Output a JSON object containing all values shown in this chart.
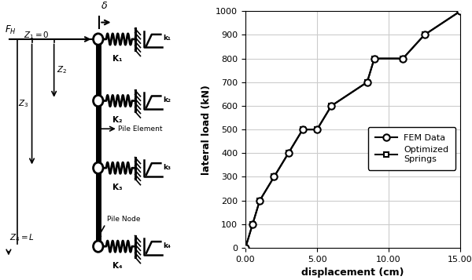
{
  "fig_width": 6.0,
  "fig_height": 3.57,
  "dpi": 100,
  "bg_color": "#ffffff",
  "graph": {
    "fem_x": [
      0,
      0.5,
      1.0,
      2.0,
      3.0,
      4.0,
      5.0,
      6.0,
      8.5,
      9.0,
      11.0,
      12.5,
      15.0
    ],
    "fem_y": [
      0,
      100,
      200,
      300,
      400,
      500,
      500,
      600,
      700,
      800,
      800,
      900,
      1000
    ],
    "opt_x": [
      0,
      0.5,
      1.0,
      2.0,
      3.0,
      4.0,
      5.0,
      6.0,
      8.5,
      9.0,
      11.0,
      12.5,
      15.0
    ],
    "opt_y": [
      0,
      100,
      200,
      300,
      400,
      500,
      500,
      600,
      700,
      800,
      800,
      900,
      1000
    ],
    "xlabel": "displacement (cm)",
    "ylabel": "lateral load (kN)",
    "xlim": [
      0,
      15
    ],
    "ylim": [
      0,
      1000
    ],
    "xticks": [
      0.0,
      5.0,
      10.0,
      15.0
    ],
    "yticks": [
      0,
      100,
      200,
      300,
      400,
      500,
      600,
      700,
      800,
      900,
      1000
    ],
    "legend_fem": "FEM Data",
    "legend_opt": "Optimized\nSprings",
    "grid_color": "#cccccc",
    "line_color": "#000000",
    "marker_fem": "o",
    "marker_opt": "s"
  }
}
